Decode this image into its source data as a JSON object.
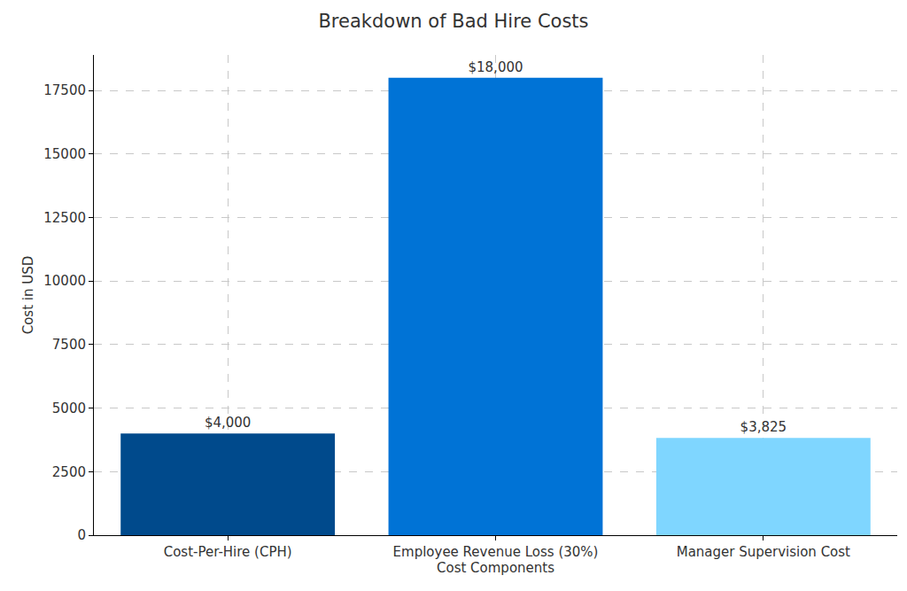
{
  "chart_data": {
    "type": "bar",
    "title": "Breakdown of Bad Hire Costs",
    "x_label": "Cost Components",
    "y_label": "Cost in USD",
    "categories": [
      "Cost-Per-Hire (CPH)",
      "Employee Revenue Loss (30%)",
      "Manager Supervision Cost"
    ],
    "values": [
      4000,
      18000,
      3825
    ],
    "value_labels": [
      "$4,000",
      "$18,000",
      "$3,825"
    ],
    "data_labels": true,
    "colors": [
      "#004a8c",
      "#0073d6",
      "#7fd6ff"
    ],
    "ylim": [
      0,
      18900
    ],
    "yticks": [
      0,
      2500,
      5000,
      7500,
      10000,
      12500,
      15000,
      17500
    ],
    "grid": true
  }
}
